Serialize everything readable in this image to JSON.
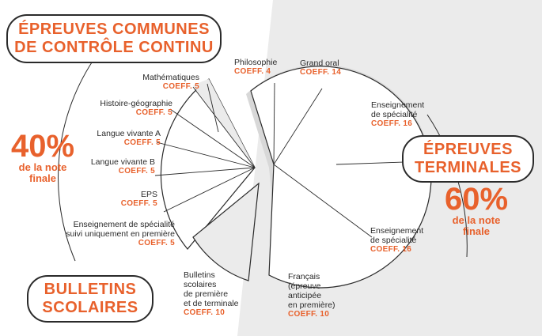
{
  "left_title": {
    "line1": "ÉPREUVES COMMUNES",
    "line2": "DE CONTRÔLE CONTINU"
  },
  "right_title": {
    "line1": "ÉPREUVES",
    "line2": "TERMINALES"
  },
  "bottom_title": {
    "line1": "BULLETINS",
    "line2": "SCOLAIRES"
  },
  "left_share": {
    "value": "40%",
    "line1": "de la note",
    "line2": "finale"
  },
  "right_share": {
    "value": "60%",
    "line1": "de la note",
    "line2": "finale"
  },
  "items": {
    "maths": {
      "name": "Mathématiques",
      "coeff": "COEFF. 5"
    },
    "histgeo": {
      "name": "Histoire-géographie",
      "coeff": "COEFF. 5"
    },
    "lva": {
      "name": "Langue vivante A",
      "coeff": "COEFF. 5"
    },
    "lvb": {
      "name": "Langue vivante B",
      "coeff": "COEFF. 5"
    },
    "eps": {
      "name": "EPS",
      "coeff": "COEFF. 5"
    },
    "spe1": {
      "line1": "Enseignement de spécialité",
      "line2": "suivi uniquement en première",
      "coeff": "COEFF. 5"
    },
    "bulletins": {
      "line1": "Bulletins",
      "line2": "scolaires",
      "line3": "de première",
      "line4": "et de terminale",
      "coeff": "COEFF. 10"
    },
    "philo": {
      "name": "Philosophie",
      "coeff": "COEFF. 4"
    },
    "oral": {
      "name": "Grand oral",
      "coeff": "COEFF. 14"
    },
    "spe2": {
      "line1": "Enseignement",
      "line2": "de spécialité",
      "coeff": "COEFF. 16"
    },
    "spe3": {
      "line1": "Enseignement",
      "line2": "de spécialité",
      "coeff": "COEFF. 16"
    },
    "francais": {
      "line1": "Français",
      "line2": "(épreuve",
      "line3": "anticipée",
      "line4": "en première)",
      "coeff": "COEFF. 10"
    }
  },
  "colors": {
    "accent": "#e8612c",
    "panel": "#ebebeb",
    "ink": "#2a2a2a"
  }
}
